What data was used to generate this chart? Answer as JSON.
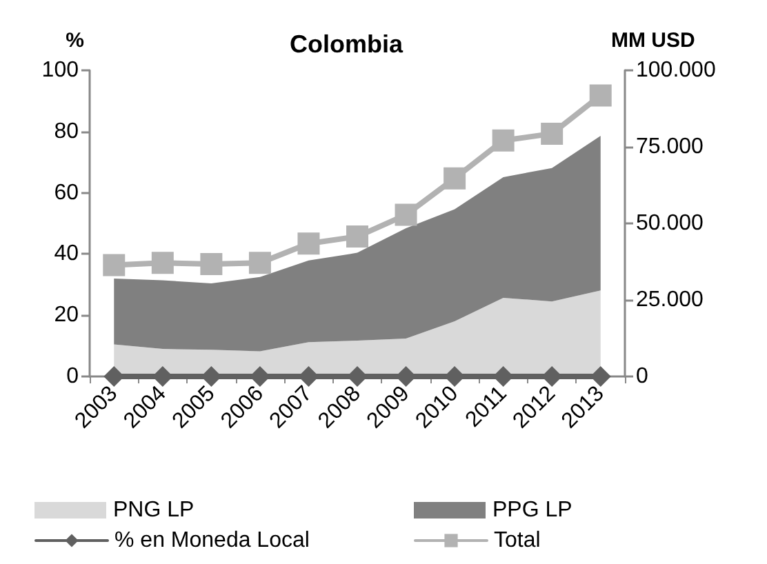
{
  "chart_data": {
    "type": "line",
    "title": "Colombia",
    "ylabel": "%",
    "y2label": "MM USD",
    "categories": [
      "2003",
      "2004",
      "2005",
      "2006",
      "2007",
      "2008",
      "2009",
      "2010",
      "2011",
      "2012",
      "2013"
    ],
    "stacked": true,
    "series": [
      {
        "name": "PNG LP",
        "type": "area",
        "axis": "y2",
        "color": "#d9d9d9",
        "marker": "none",
        "values": [
          10500,
          9000,
          8700,
          8200,
          11200,
          11700,
          12400,
          18000,
          25700,
          24500,
          28100
        ]
      },
      {
        "name": "PPG LP",
        "type": "area",
        "axis": "y2",
        "color": "#808080",
        "marker": "none",
        "values": [
          21500,
          22400,
          21700,
          24300,
          26700,
          28700,
          36000,
          36600,
          39400,
          43600,
          50500
        ]
      },
      {
        "name": "% en Moneda Local",
        "axis": "y",
        "color": "#606060",
        "marker": "diamond",
        "values": [
          0,
          0,
          0,
          0,
          0,
          0,
          0,
          0,
          0,
          0,
          0
        ]
      },
      {
        "name": "Total",
        "axis": "y2",
        "color": "#b2b2b2",
        "marker": "square",
        "values": [
          36400,
          37100,
          36700,
          37100,
          43400,
          45700,
          52800,
          64700,
          77100,
          79300,
          91800
        ]
      }
    ],
    "ylim": [
      0,
      100
    ],
    "yticks": [
      0,
      20,
      40,
      60,
      80,
      100
    ],
    "y2lim": [
      0,
      100000
    ],
    "y2ticks": [
      {
        "value": 0,
        "label": "0"
      },
      {
        "value": 25000,
        "label": "25.000"
      },
      {
        "value": 50000,
        "label": "50.000"
      },
      {
        "value": 75000,
        "label": "75.000"
      },
      {
        "value": 100000,
        "label": "100.000"
      }
    ],
    "grid": false,
    "legend": "bottom"
  }
}
